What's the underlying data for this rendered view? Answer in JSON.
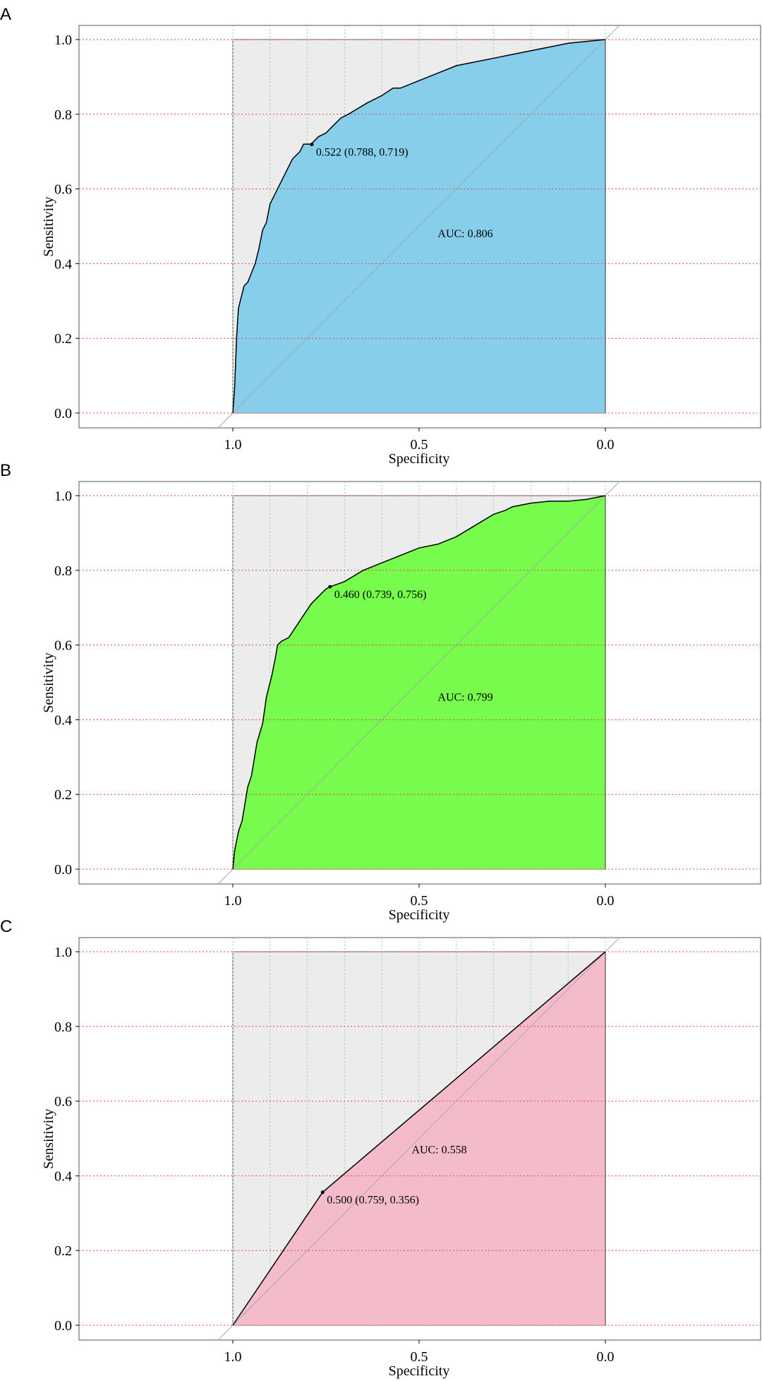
{
  "colors": {
    "background_region": "#ececec",
    "diagonal": "#a9a9a9",
    "hgrid": "#e0474c",
    "vgrid": "#90d890",
    "curve": "#000000"
  },
  "chart_data": [
    {
      "panel": "A",
      "type": "area",
      "xlabel": "Specificity",
      "ylabel": "Sensitivity",
      "xlim": [
        1.0,
        0.0
      ],
      "ylim": [
        0.0,
        1.0
      ],
      "x_ticks": [
        "1.0",
        "0.5",
        "0.0"
      ],
      "y_ticks": [
        "0.0",
        "0.2",
        "0.4",
        "0.6",
        "0.8",
        "1.0"
      ],
      "fill": "#87ceeb",
      "auc_label": "AUC: 0.806",
      "auc_label_pos": [
        0.45,
        0.48
      ],
      "threshold_label": "0.522 (0.788, 0.719)",
      "threshold_point": [
        0.788,
        0.719
      ],
      "curve_specificity": [
        1.0,
        0.995,
        0.99,
        0.985,
        0.97,
        0.96,
        0.94,
        0.93,
        0.92,
        0.91,
        0.9,
        0.89,
        0.88,
        0.87,
        0.86,
        0.85,
        0.84,
        0.82,
        0.81,
        0.79,
        0.77,
        0.75,
        0.74,
        0.71,
        0.69,
        0.64,
        0.6,
        0.57,
        0.55,
        0.5,
        0.45,
        0.4,
        0.35,
        0.3,
        0.25,
        0.2,
        0.15,
        0.1,
        0.05,
        0.0
      ],
      "curve_sensitivity": [
        0.0,
        0.07,
        0.2,
        0.28,
        0.34,
        0.35,
        0.4,
        0.44,
        0.49,
        0.51,
        0.56,
        0.58,
        0.6,
        0.62,
        0.64,
        0.66,
        0.68,
        0.7,
        0.72,
        0.72,
        0.74,
        0.75,
        0.76,
        0.79,
        0.8,
        0.83,
        0.85,
        0.87,
        0.87,
        0.89,
        0.91,
        0.93,
        0.94,
        0.95,
        0.96,
        0.97,
        0.98,
        0.99,
        0.995,
        1.0
      ]
    },
    {
      "panel": "B",
      "type": "area",
      "xlabel": "Specificity",
      "ylabel": "Sensitivity",
      "xlim": [
        1.0,
        0.0
      ],
      "ylim": [
        0.0,
        1.0
      ],
      "x_ticks": [
        "1.0",
        "0.5",
        "0.0"
      ],
      "y_ticks": [
        "0.0",
        "0.2",
        "0.4",
        "0.6",
        "0.8",
        "1.0"
      ],
      "fill": "#77fc4d",
      "auc_label": "AUC: 0.799",
      "auc_label_pos": [
        0.45,
        0.46
      ],
      "threshold_label": "0.460 (0.739, 0.756)",
      "threshold_point": [
        0.739,
        0.756
      ],
      "curve_specificity": [
        1.0,
        0.995,
        0.985,
        0.975,
        0.96,
        0.95,
        0.935,
        0.92,
        0.91,
        0.895,
        0.885,
        0.88,
        0.87,
        0.85,
        0.83,
        0.81,
        0.79,
        0.77,
        0.75,
        0.739,
        0.7,
        0.65,
        0.6,
        0.55,
        0.5,
        0.45,
        0.4,
        0.35,
        0.3,
        0.27,
        0.25,
        0.2,
        0.15,
        0.1,
        0.05,
        0.0
      ],
      "curve_specificity_note": "",
      "curve_sensitivity": [
        0.0,
        0.05,
        0.1,
        0.13,
        0.22,
        0.25,
        0.34,
        0.39,
        0.46,
        0.52,
        0.57,
        0.6,
        0.61,
        0.62,
        0.65,
        0.68,
        0.71,
        0.73,
        0.75,
        0.756,
        0.77,
        0.8,
        0.82,
        0.84,
        0.86,
        0.87,
        0.89,
        0.92,
        0.95,
        0.96,
        0.97,
        0.98,
        0.985,
        0.985,
        0.99,
        1.0
      ]
    },
    {
      "panel": "C",
      "type": "area",
      "xlabel": "Specificity",
      "ylabel": "Sensitivity",
      "xlim": [
        1.0,
        0.0
      ],
      "ylim": [
        0.0,
        1.0
      ],
      "x_ticks": [
        "1.0",
        "0.5",
        "0.0"
      ],
      "y_ticks": [
        "0.0",
        "0.2",
        "0.4",
        "0.6",
        "0.8",
        "1.0"
      ],
      "fill": "#f4bccb",
      "auc_label": "AUC: 0.558",
      "auc_label_pos": [
        0.52,
        0.47
      ],
      "threshold_label": "0.500 (0.759, 0.356)",
      "threshold_point": [
        0.759,
        0.356
      ],
      "curve_specificity": [
        1.0,
        0.759,
        0.0
      ],
      "curve_sensitivity": [
        0.0,
        0.356,
        1.0
      ]
    }
  ]
}
